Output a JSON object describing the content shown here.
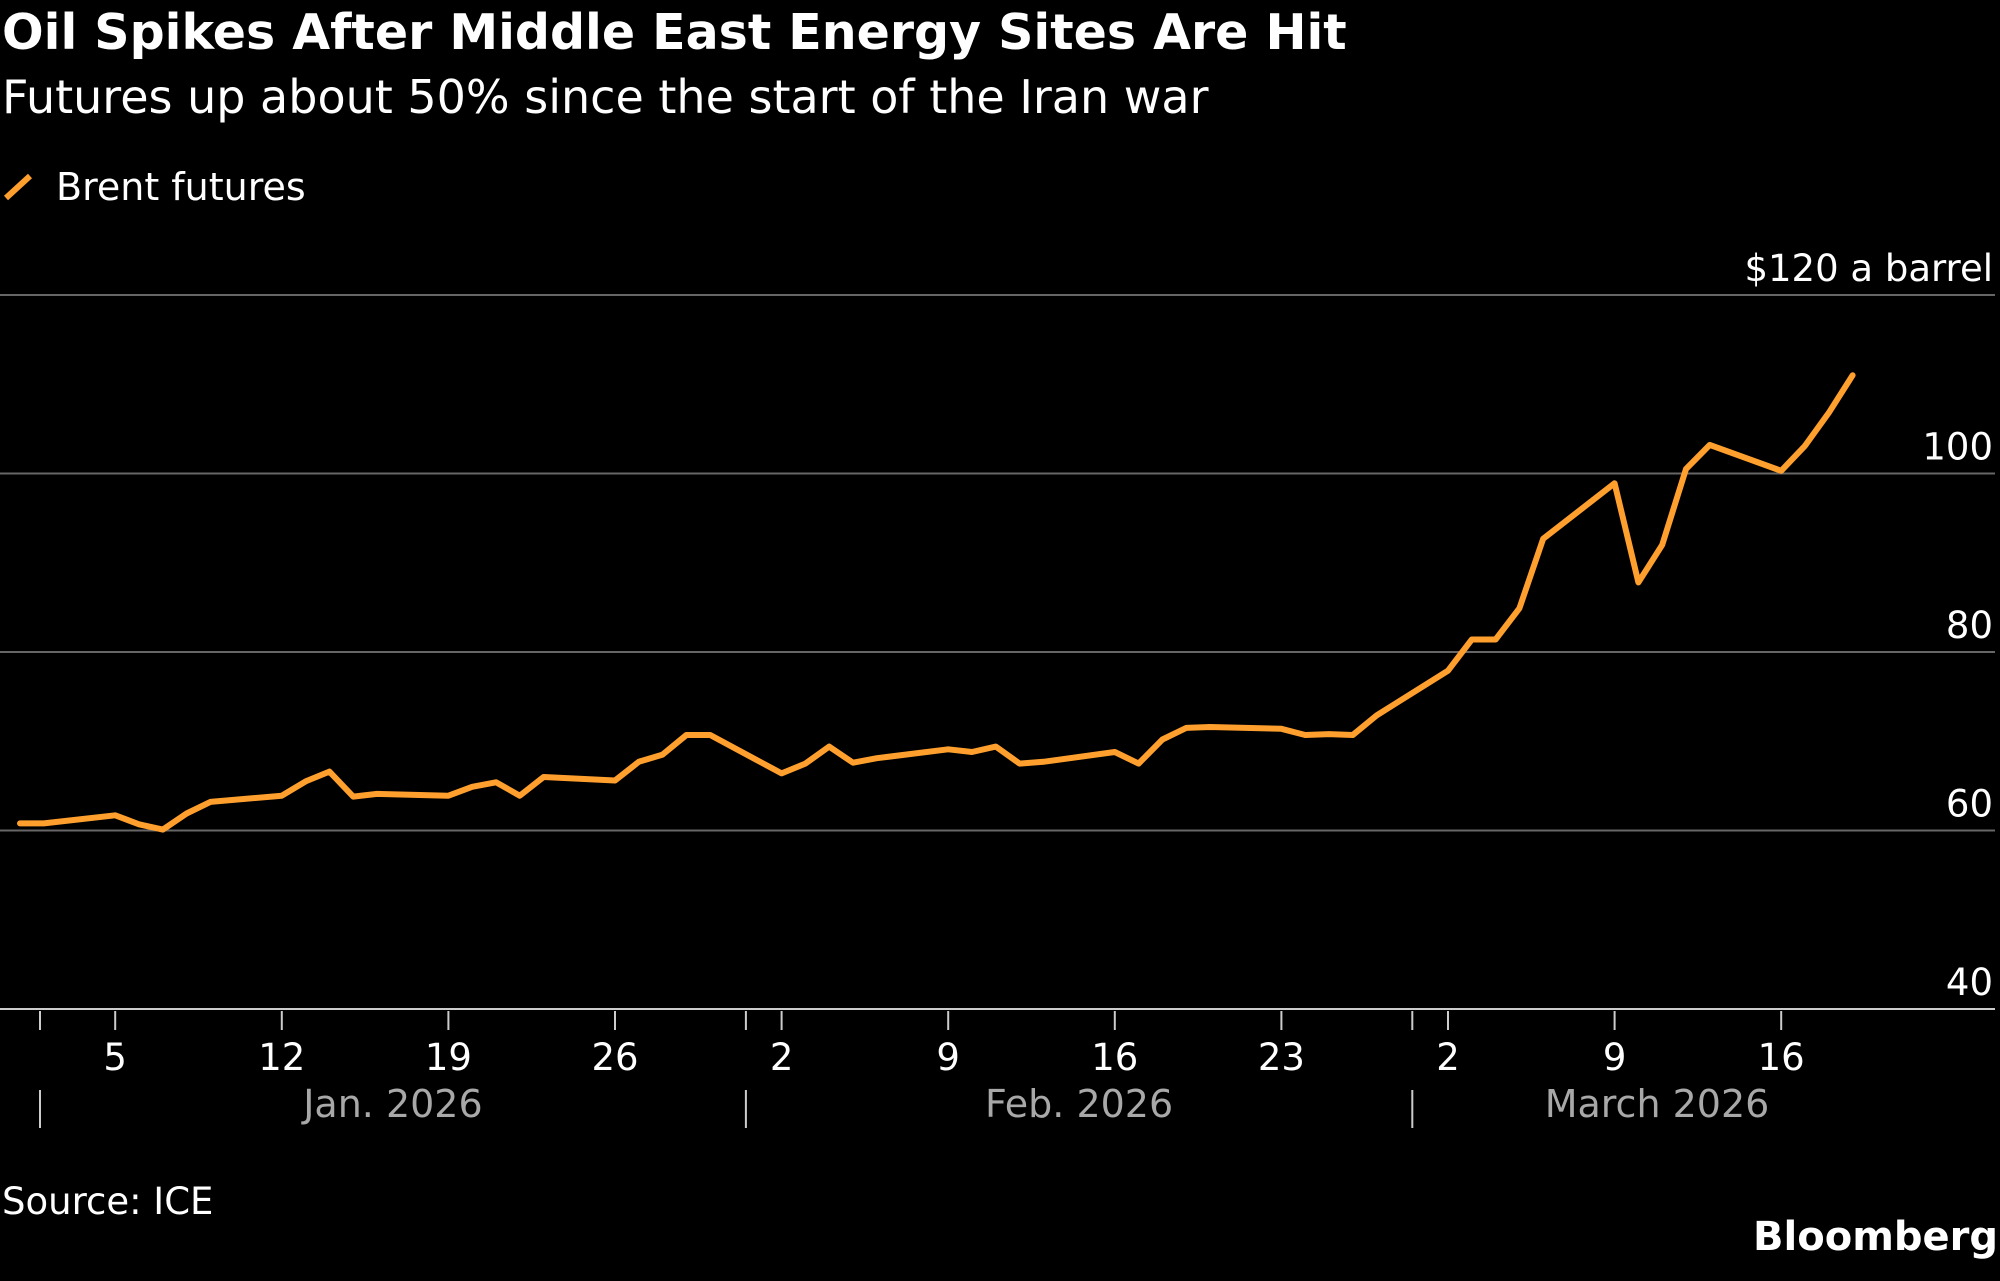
{
  "title": "Oil Spikes After Middle East Energy Sites Are Hit",
  "subtitle": "Futures up about 50% since the start of the Iran war",
  "source": "Source: ICE",
  "brand": "Bloomberg",
  "colors": {
    "line": "#ff9f2e",
    "grid": "#666666",
    "background": "#000000",
    "text": "#ffffff",
    "month_label": "#a8a8a8"
  },
  "chart_data": {
    "type": "line",
    "series": [
      {
        "name": "Brent futures",
        "x": [
          "2026-01-01",
          "2026-01-02",
          "2026-01-05",
          "2026-01-06",
          "2026-01-07",
          "2026-01-08",
          "2026-01-09",
          "2026-01-12",
          "2026-01-13",
          "2026-01-14",
          "2026-01-15",
          "2026-01-16",
          "2026-01-19",
          "2026-01-20",
          "2026-01-21",
          "2026-01-22",
          "2026-01-23",
          "2026-01-26",
          "2026-01-27",
          "2026-01-28",
          "2026-01-29",
          "2026-01-30",
          "2026-02-02",
          "2026-02-03",
          "2026-02-04",
          "2026-02-05",
          "2026-02-06",
          "2026-02-09",
          "2026-02-10",
          "2026-02-11",
          "2026-02-12",
          "2026-02-13",
          "2026-02-16",
          "2026-02-17",
          "2026-02-18",
          "2026-02-19",
          "2026-02-20",
          "2026-02-23",
          "2026-02-24",
          "2026-02-25",
          "2026-02-26",
          "2026-02-27",
          "2026-03-02",
          "2026-03-03",
          "2026-03-04",
          "2026-03-05",
          "2026-03-06",
          "2026-03-09",
          "2026-03-10",
          "2026-03-11",
          "2026-03-12",
          "2026-03-13",
          "2026-03-16",
          "2026-03-17",
          "2026-03-18",
          "2026-03-19"
        ],
        "values": [
          60.8,
          60.8,
          61.7,
          60.7,
          60.1,
          61.9,
          63.2,
          63.9,
          65.5,
          66.6,
          63.8,
          64.1,
          63.9,
          64.9,
          65.4,
          63.9,
          66.0,
          65.6,
          67.7,
          68.5,
          70.7,
          70.7,
          66.4,
          67.5,
          69.4,
          67.6,
          68.1,
          69.1,
          68.8,
          69.4,
          67.5,
          67.7,
          68.8,
          67.5,
          70.2,
          71.5,
          71.6,
          71.4,
          70.7,
          70.8,
          70.7,
          72.9,
          77.9,
          81.4,
          81.4,
          84.9,
          92.7,
          98.9,
          87.8,
          92.0,
          100.5,
          103.2,
          100.3,
          103.1,
          106.8,
          111.0
        ]
      }
    ],
    "ylim": [
      40,
      120
    ],
    "y_ticks": [
      40,
      60,
      80,
      100,
      120
    ],
    "y_tick_labels": [
      "40",
      "60",
      "80",
      "100",
      "$120 a barrel"
    ],
    "x_tick_labels": [
      {
        "date": "2026-01-05",
        "label": "5"
      },
      {
        "date": "2026-01-12",
        "label": "12"
      },
      {
        "date": "2026-01-19",
        "label": "19"
      },
      {
        "date": "2026-01-26",
        "label": "26"
      },
      {
        "date": "2026-02-02",
        "label": "2"
      },
      {
        "date": "2026-02-09",
        "label": "9"
      },
      {
        "date": "2026-02-16",
        "label": "16"
      },
      {
        "date": "2026-02-23",
        "label": "23"
      },
      {
        "date": "2026-03-02",
        "label": "2"
      },
      {
        "date": "2026-03-09",
        "label": "9"
      },
      {
        "date": "2026-03-16",
        "label": "16"
      }
    ],
    "months": [
      {
        "start": "2026-01-01",
        "end": "2026-01-31",
        "label": "Jan. 2026"
      },
      {
        "start": "2026-02-01",
        "end": "2026-02-28",
        "label": "Feb. 2026"
      },
      {
        "start": "2026-03-01",
        "end": "2026-03-31",
        "label": "March 2026"
      }
    ],
    "grid": true,
    "legend": "top-left"
  }
}
